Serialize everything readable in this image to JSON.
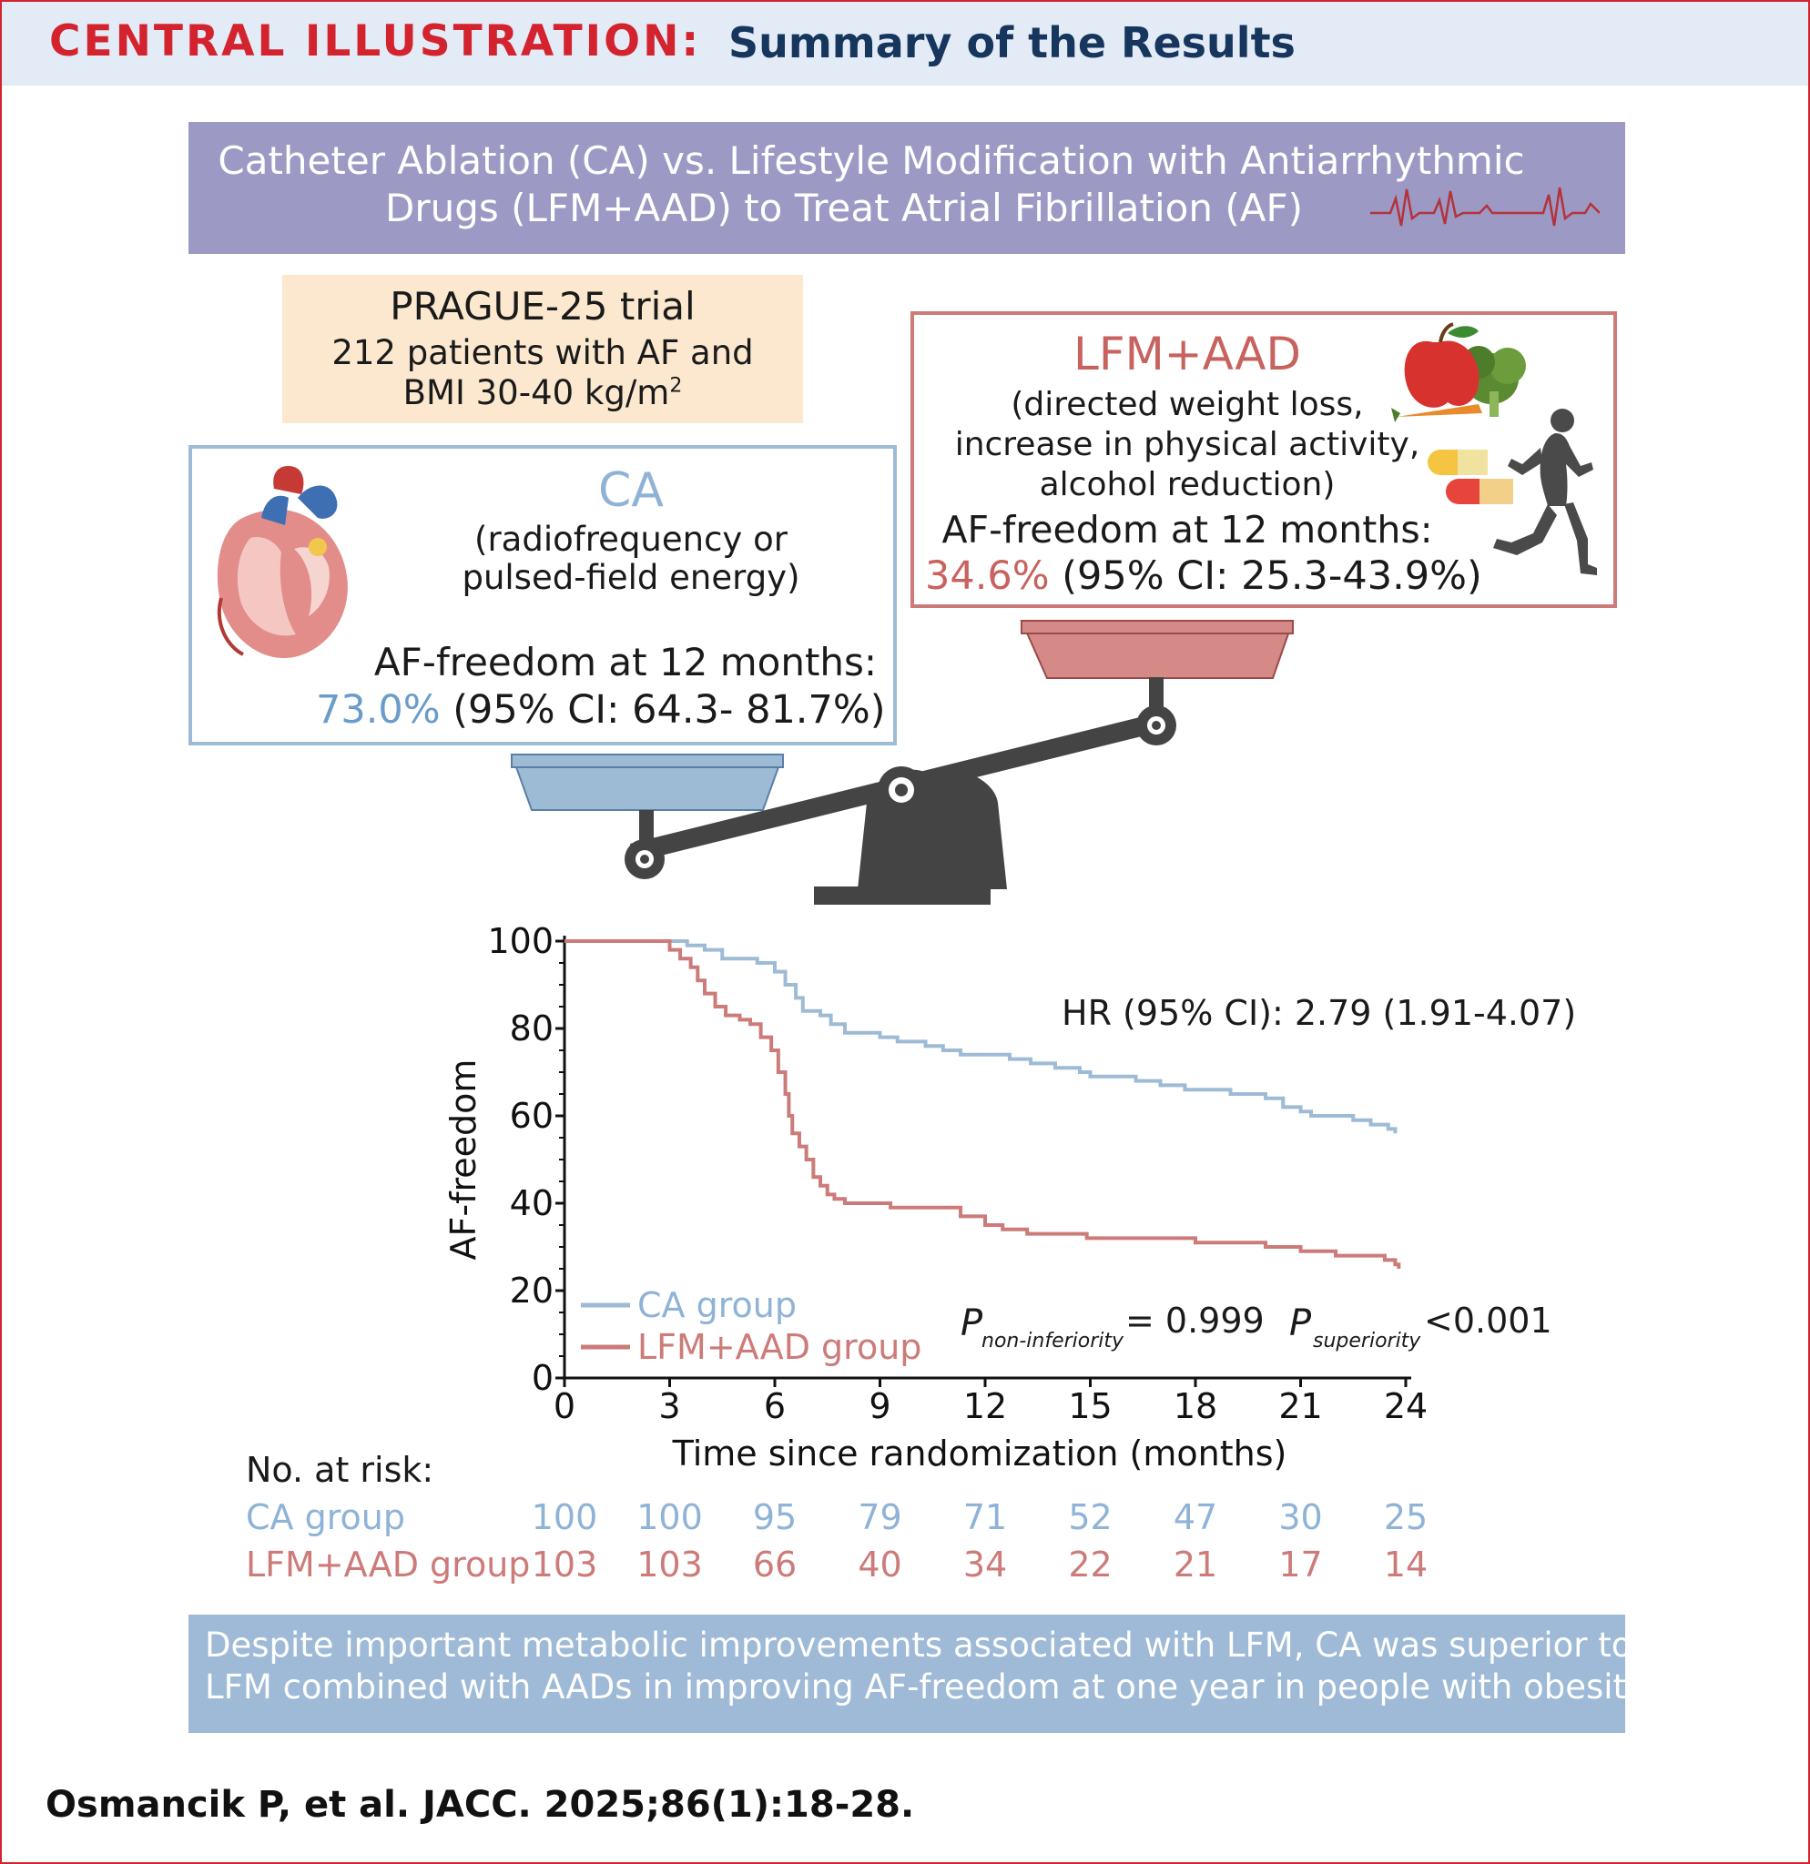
{
  "header": {
    "label": "CENTRAL ILLUSTRATION:",
    "subtitle": "Summary of the Results"
  },
  "banner": {
    "line1": "Catheter Ablation (CA) vs. Lifestyle Modification with Antiarrhythmic",
    "line2": "Drugs (LFM+AAD) to Treat Atrial Fibrillation (AF)"
  },
  "trial": {
    "name": "PRAGUE-25 trial",
    "line1": "212 patients with AF and",
    "line2_prefix": "BMI 30-40 kg/m",
    "line2_sup": "2"
  },
  "lfm_box": {
    "title": "LFM+AAD",
    "desc_line1": "(directed weight loss,",
    "desc_line2": "increase in physical activity,",
    "desc_line3": "alcohol reduction)",
    "freedom_label": "AF-freedom at 12 months:",
    "freedom_value": "34.6%",
    "freedom_ci": "(95% CI: 25.3-43.9%)"
  },
  "ca_box": {
    "title": "CA",
    "desc_line1": "(radiofrequency or",
    "desc_line2": "pulsed-field energy)",
    "freedom_label": "AF-freedom at 12 months:",
    "freedom_value": "73.0%",
    "freedom_ci": "(95% CI: 64.3- 81.7%)"
  },
  "annotations": {
    "hr": "HR (95% CI): 2.79 (1.91-4.07)",
    "p_label": "P",
    "p_nonInf_sub": "non-inferiority",
    "p_nonInf_val": "= 0.999",
    "p_sup_sub": "superiority",
    "p_sup_val": "<0.001"
  },
  "risk_table": {
    "header": "No. at risk:",
    "rows": [
      {
        "label": "CA group",
        "values": [
          "100",
          "100",
          "95",
          "79",
          "71",
          "52",
          "47",
          "30",
          "25"
        ]
      },
      {
        "label": "LFM+AAD group",
        "values": [
          "103",
          "103",
          "66",
          "40",
          "34",
          "22",
          "21",
          "17",
          "14"
        ]
      }
    ]
  },
  "conclusion": {
    "line1": "Despite important metabolic improvements associated with LFM, CA was superior to",
    "line2": "LFM combined with AADs in improving AF-freedom at one year in people with obesity."
  },
  "citation": "Osmancik P, et al. JACC. 2025;86(1):18-28.",
  "colors": {
    "accent_red": "#d3232f",
    "navy": "#17365d",
    "ca_blue": "#9ebbd6",
    "ca_blue_text": "#6a9ccb",
    "lfm_red": "#cc7b79",
    "banner_purple": "#9c99c4",
    "trial_beige": "#fbe8cf"
  },
  "icons": [
    "heart-illustration",
    "ecg-waveform-icon",
    "apple-vegetables-icon",
    "pills-icon",
    "runner-icon",
    "balance-scale-icon"
  ],
  "chart_data": {
    "type": "line",
    "xlabel": "Time since randomization (months)",
    "ylabel": "AF-freedom",
    "xlim": [
      0,
      24
    ],
    "ylim": [
      0,
      100
    ],
    "x_ticks": [
      0,
      3,
      6,
      9,
      12,
      15,
      18,
      21,
      24
    ],
    "y_ticks": [
      0,
      20,
      40,
      60,
      80,
      100
    ],
    "step": true,
    "legend_position": "lower-left",
    "series": [
      {
        "name": "CA group",
        "color": "#9ebbd6",
        "points": [
          [
            0,
            100
          ],
          [
            3,
            100
          ],
          [
            3.5,
            99
          ],
          [
            4,
            98
          ],
          [
            4.5,
            96
          ],
          [
            5.5,
            95
          ],
          [
            6,
            93
          ],
          [
            6.3,
            90
          ],
          [
            6.6,
            87
          ],
          [
            6.8,
            84
          ],
          [
            7.3,
            83
          ],
          [
            7.6,
            81
          ],
          [
            8,
            79
          ],
          [
            9,
            78
          ],
          [
            9.5,
            77
          ],
          [
            10.3,
            76
          ],
          [
            10.8,
            75
          ],
          [
            11.3,
            74
          ],
          [
            12,
            74
          ],
          [
            12.7,
            73
          ],
          [
            13.3,
            72
          ],
          [
            14,
            71
          ],
          [
            14.7,
            70
          ],
          [
            15,
            69
          ],
          [
            15.8,
            69
          ],
          [
            16.3,
            68
          ],
          [
            17,
            67
          ],
          [
            17.7,
            66
          ],
          [
            19,
            65
          ],
          [
            20,
            64
          ],
          [
            20.5,
            62
          ],
          [
            21,
            61
          ],
          [
            21.3,
            60
          ],
          [
            22.5,
            59
          ],
          [
            23,
            58
          ],
          [
            23.5,
            57
          ],
          [
            23.7,
            56
          ]
        ]
      },
      {
        "name": "LFM+AAD group",
        "color": "#cc7b79",
        "points": [
          [
            0,
            100
          ],
          [
            2.8,
            100
          ],
          [
            3,
            98
          ],
          [
            3.3,
            96
          ],
          [
            3.6,
            94
          ],
          [
            3.8,
            91
          ],
          [
            4,
            88
          ],
          [
            4.3,
            85
          ],
          [
            4.6,
            83
          ],
          [
            5,
            82
          ],
          [
            5.3,
            81
          ],
          [
            5.6,
            78
          ],
          [
            5.9,
            75
          ],
          [
            6.1,
            70
          ],
          [
            6.3,
            65
          ],
          [
            6.4,
            60
          ],
          [
            6.5,
            56
          ],
          [
            6.7,
            53
          ],
          [
            6.9,
            50
          ],
          [
            7.1,
            46
          ],
          [
            7.3,
            44
          ],
          [
            7.5,
            42
          ],
          [
            7.7,
            41
          ],
          [
            8,
            40
          ],
          [
            9,
            40
          ],
          [
            9.3,
            39
          ],
          [
            11,
            39
          ],
          [
            11.3,
            37
          ],
          [
            12,
            35
          ],
          [
            12.5,
            34
          ],
          [
            13.2,
            33
          ],
          [
            14,
            33
          ],
          [
            14.9,
            32
          ],
          [
            15.5,
            32
          ],
          [
            17,
            32
          ],
          [
            18,
            31
          ],
          [
            20,
            30
          ],
          [
            21,
            29
          ],
          [
            22,
            28
          ],
          [
            23.4,
            27
          ],
          [
            23.7,
            26
          ],
          [
            23.8,
            25
          ]
        ]
      }
    ]
  }
}
